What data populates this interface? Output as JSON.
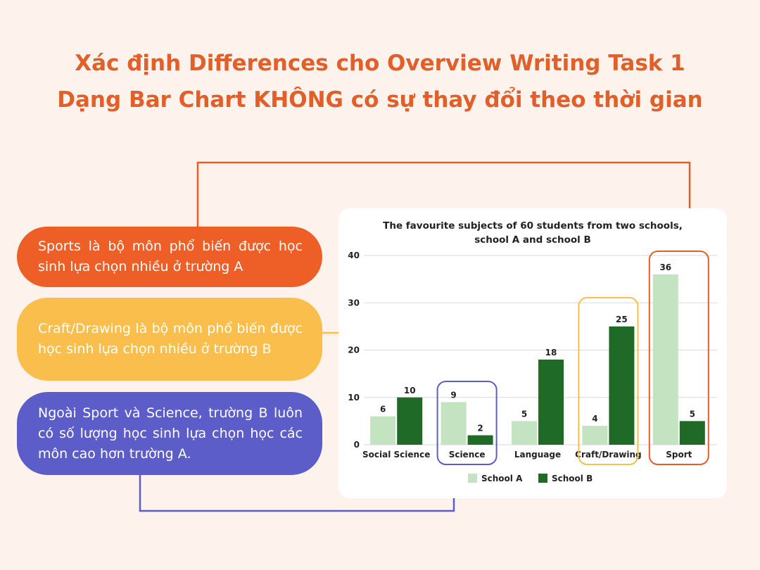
{
  "title": {
    "line1": "Xác định Differences cho Overview Writing Task 1",
    "line2": "Dạng Bar Chart KHÔNG có sự thay đổi theo thời gian"
  },
  "callouts": [
    {
      "text": "Sports là bộ môn phổ biến được học sinh lựa chọn nhiều ở trường A",
      "color": "#ee5f27"
    },
    {
      "text": "Craft/Drawing là bộ môn phổ biến được học sinh lựa chọn nhiều ở trường B",
      "color": "#f9be4b"
    },
    {
      "text": "Ngoài Sport và Science, trường B luôn có số lượng học sinh lựa chọn học các môn cao hơn trường A.",
      "color": "#5c5dc9"
    }
  ],
  "chart_data": {
    "type": "bar",
    "title": "The favourite subjects of 60 students from two schools, school A and school B",
    "title_lines": [
      "The favourite subjects of 60 students from two schools,",
      "school A and school B"
    ],
    "categories": [
      "Social Science",
      "Science",
      "Language",
      "Craft/Drawing",
      "Sport"
    ],
    "series": [
      {
        "name": "School A",
        "values": [
          6,
          9,
          5,
          4,
          36
        ],
        "color": "#c3e3c1"
      },
      {
        "name": "School B",
        "values": [
          10,
          2,
          18,
          25,
          5
        ],
        "color": "#1f6a27"
      }
    ],
    "ylim": [
      0,
      40
    ],
    "yticks": [
      0,
      10,
      20,
      30,
      40
    ],
    "grid": true,
    "legend": "bottom",
    "highlights": [
      {
        "category": "Science",
        "color": "#5c5dc9"
      },
      {
        "category": "Craft/Drawing",
        "color": "#f9be4b"
      },
      {
        "category": "Sport",
        "color": "#e35f2a"
      }
    ]
  }
}
